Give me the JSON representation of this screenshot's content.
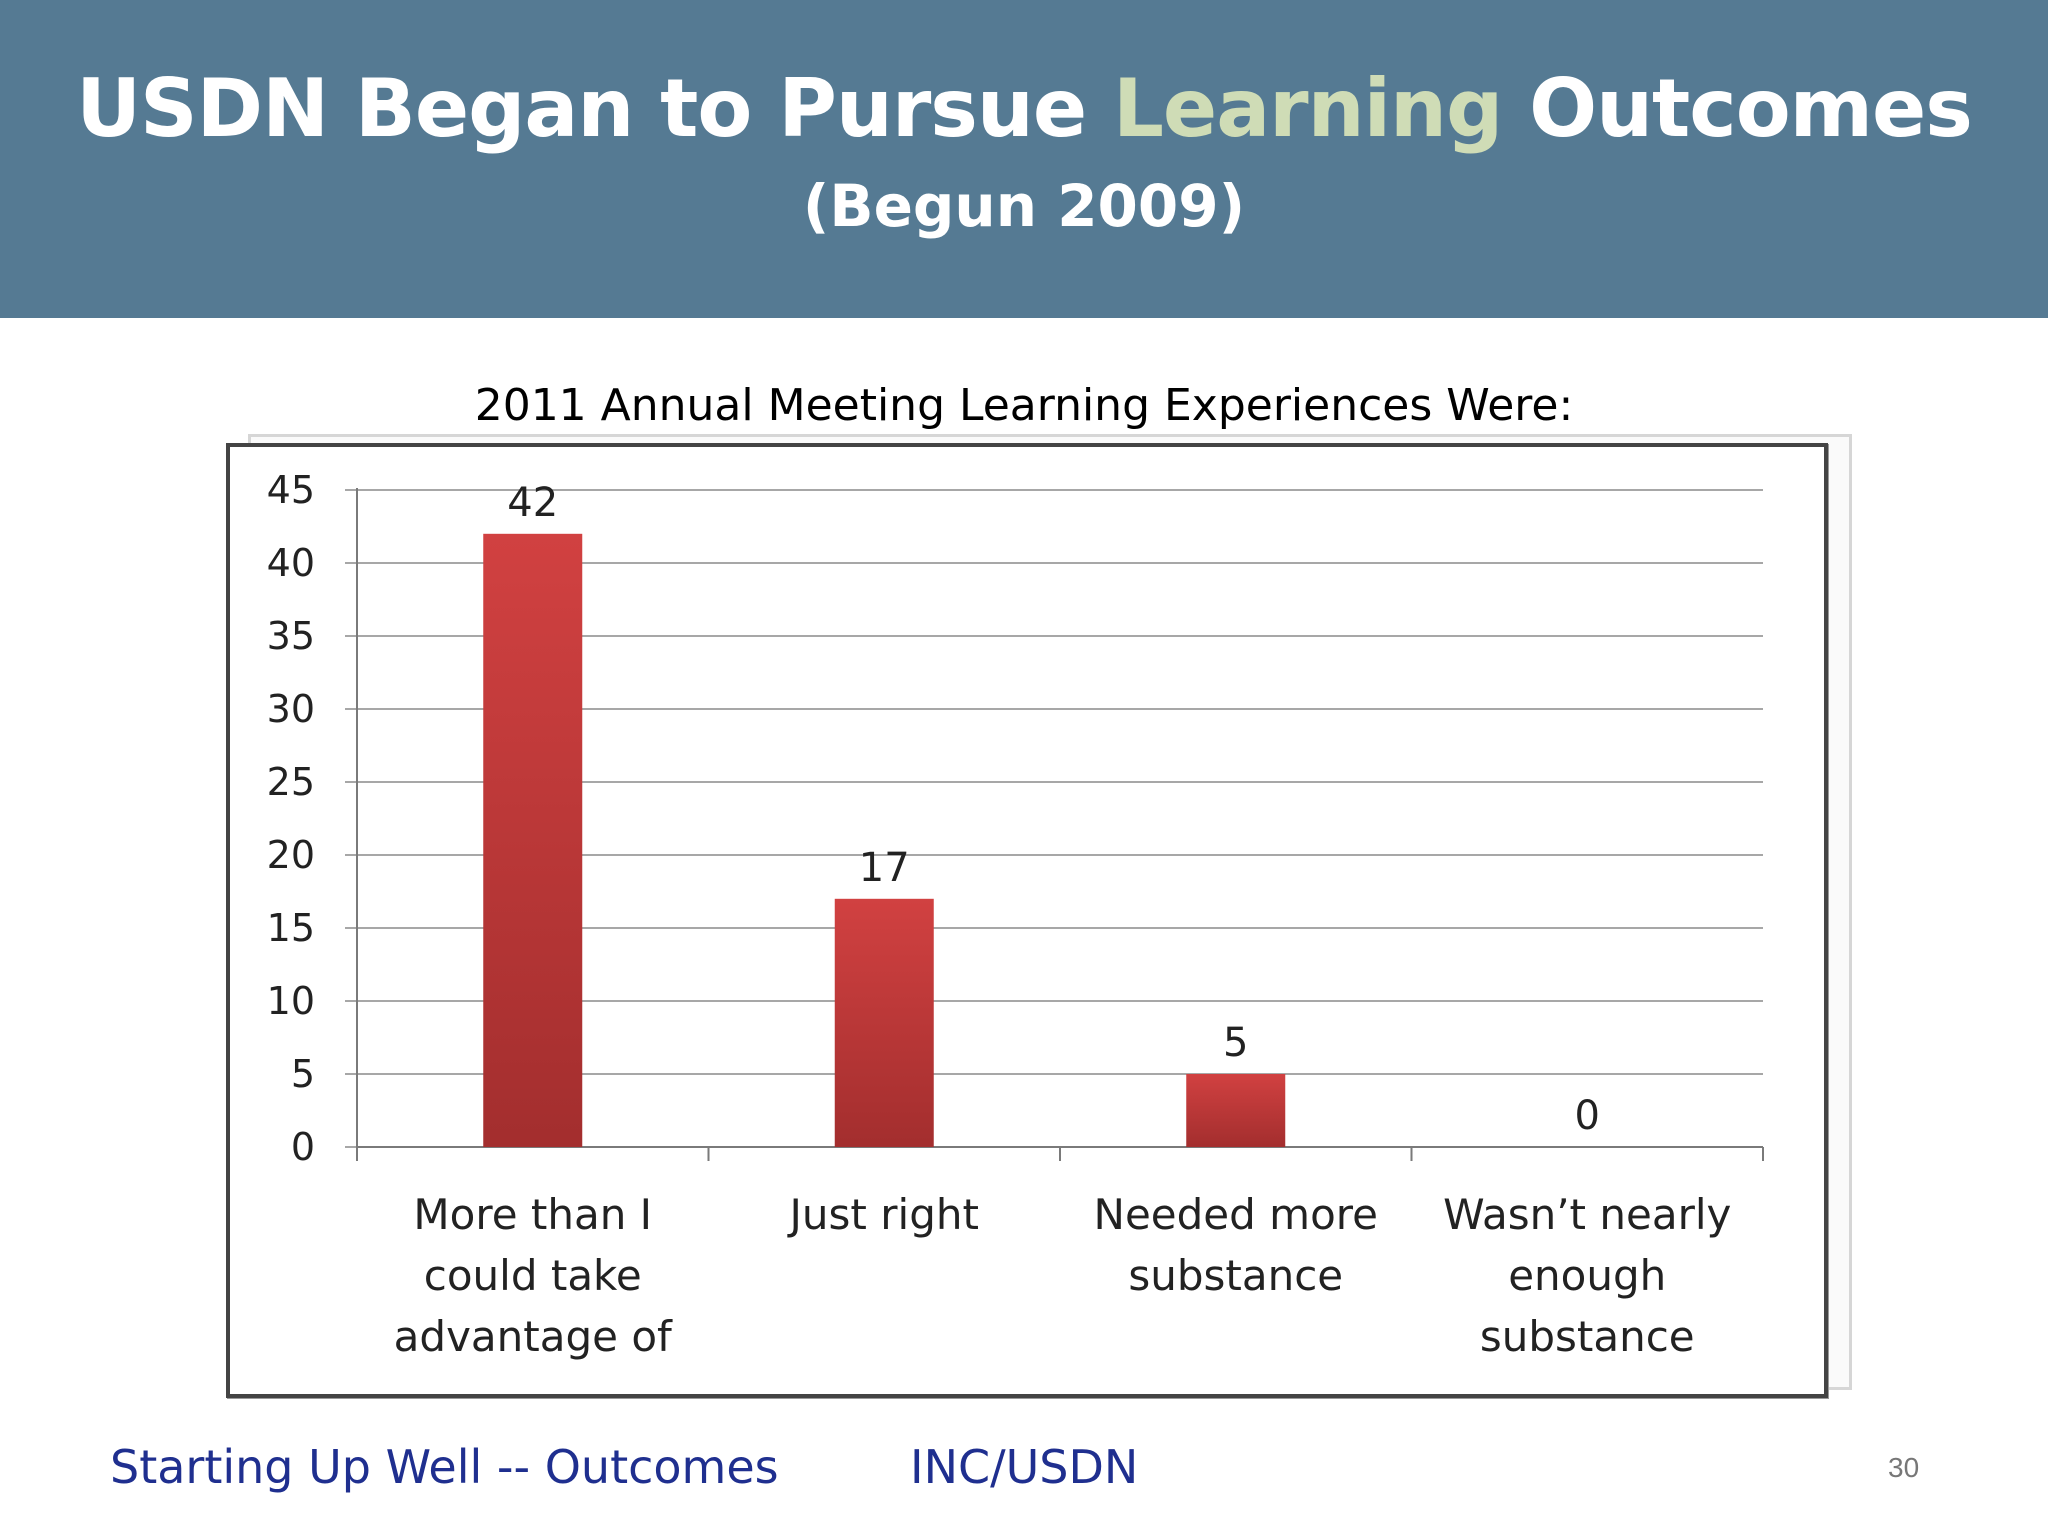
{
  "header": {
    "title_part1": "USDN Began to Pursue ",
    "title_accent": "Learning",
    "title_part2": " Outcomes",
    "subtitle": "(Begun 2009)",
    "background_color": "#557a93",
    "accent_color": "#cfdcb6"
  },
  "chart_data": {
    "type": "bar",
    "title": "2011 Annual Meeting Learning Experiences Were:",
    "categories": [
      [
        "More than I",
        "could take",
        "advantage of"
      ],
      [
        "Just right"
      ],
      [
        "Needed more",
        "substance"
      ],
      [
        "Wasn’t nearly",
        "enough",
        "substance"
      ]
    ],
    "values": [
      42,
      17,
      5,
      0
    ],
    "data_labels": [
      "42",
      "17",
      "5",
      "0"
    ],
    "xlabel": "",
    "ylabel": "",
    "ylim": [
      0,
      45
    ],
    "yticks": [
      "0",
      "5",
      "10",
      "15",
      "20",
      "25",
      "30",
      "35",
      "40",
      "45"
    ],
    "grid": true,
    "legend": "none",
    "bar_color": "#c93a3a"
  },
  "footer": {
    "left": "Starting Up Well -- Outcomes",
    "middle": "INC/USDN",
    "page_number": "30"
  }
}
